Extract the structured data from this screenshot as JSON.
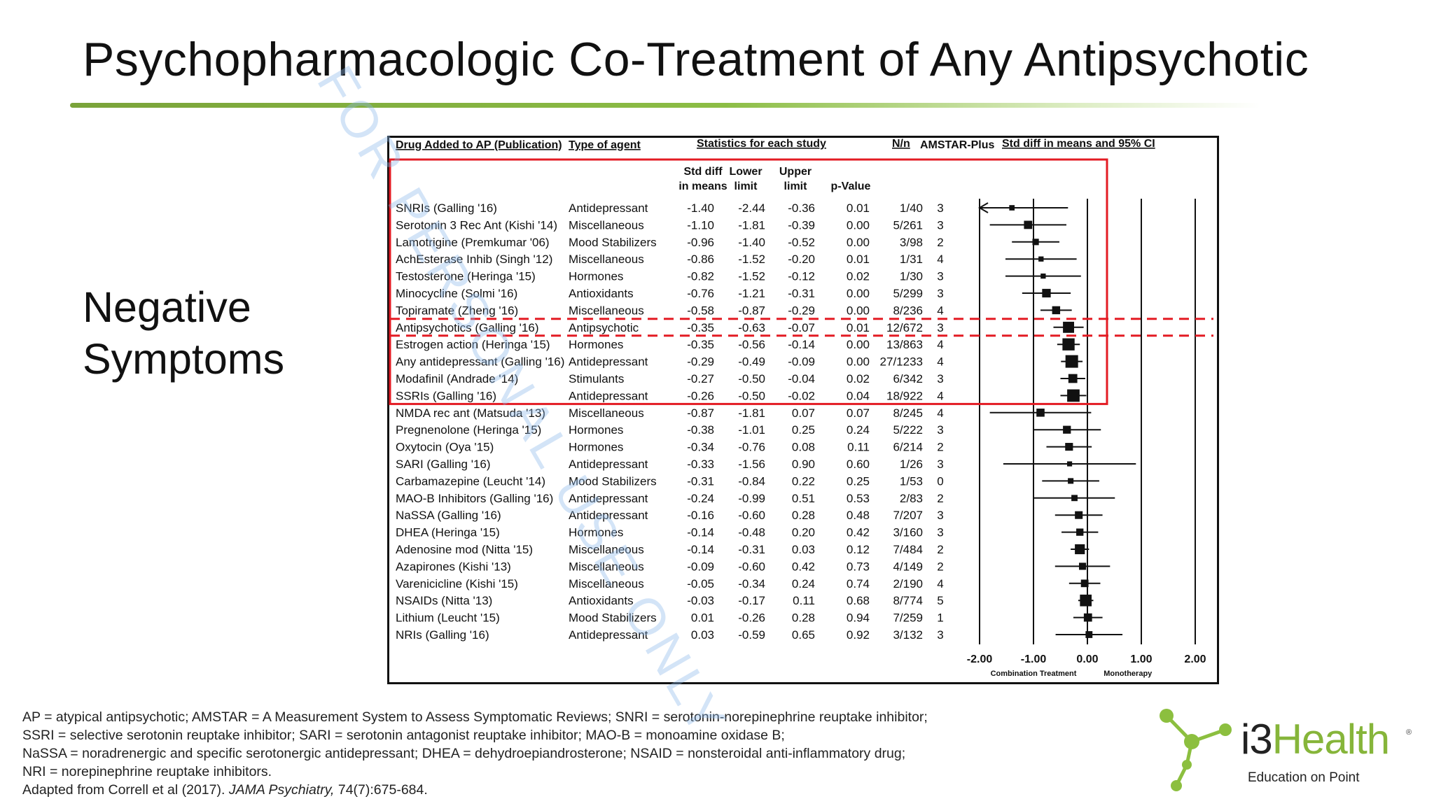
{
  "slide": {
    "title": "Psychopharmacologic Co-Treatment of Any Antipsychotic",
    "subtitle_line1": "Negative",
    "subtitle_line2": "Symptoms",
    "watermark": "FOR PERSONAL USE ONLY",
    "accent_color": "#86b53a",
    "highlight_color": "#e31b23"
  },
  "chart_data": {
    "type": "forest",
    "headers": {
      "drug": "Drug Added to AP (Publication)",
      "type": "Type of agent",
      "statistics": "Statistics for each study",
      "n": "N/n",
      "amstar": "AMSTAR-Plus",
      "ci": "Std diff in means and 95% CI"
    },
    "subheaders": {
      "std1": "Std diff",
      "std2": "in means",
      "lower1": "Lower",
      "lower2": "limit",
      "upper1": "Upper",
      "upper2": "limit",
      "p": "p-Value"
    },
    "axis": {
      "min": -2,
      "max": 2,
      "ticks": [
        "-2.00",
        "-1.00",
        "0.00",
        "1.00",
        "2.00"
      ],
      "left_label": "Combination Treatment",
      "right_label": "Monotherapy"
    },
    "rows": [
      {
        "drug": "SNRIs (Galling '16)",
        "type": "Antidepressant",
        "smd": "-1.40",
        "lower": "-2.44",
        "upper": "-0.36",
        "p": "0.01",
        "n": "1/40",
        "amstar": "3",
        "arrow_left": true
      },
      {
        "drug": "Serotonin 3 Rec Ant (Kishi '14)",
        "type": "Miscellaneous",
        "smd": "-1.10",
        "lower": "-1.81",
        "upper": "-0.39",
        "p": "0.00",
        "n": "5/261",
        "amstar": "3"
      },
      {
        "drug": "Lamotrigine (Premkumar '06)",
        "type": "Mood Stabilizers",
        "smd": "-0.96",
        "lower": "-1.40",
        "upper": "-0.52",
        "p": "0.00",
        "n": "3/98",
        "amstar": "2"
      },
      {
        "drug": "AchEsterase Inhib (Singh '12)",
        "type": "Miscellaneous",
        "smd": "-0.86",
        "lower": "-1.52",
        "upper": "-0.20",
        "p": "0.01",
        "n": "1/31",
        "amstar": "4"
      },
      {
        "drug": "Testosterone (Heringa '15)",
        "type": "Hormones",
        "smd": "-0.82",
        "lower": "-1.52",
        "upper": "-0.12",
        "p": "0.02",
        "n": "1/30",
        "amstar": "3"
      },
      {
        "drug": "Minocycline (Solmi '16)",
        "type": "Antioxidants",
        "smd": "-0.76",
        "lower": "-1.21",
        "upper": "-0.31",
        "p": "0.00",
        "n": "5/299",
        "amstar": "3"
      },
      {
        "drug": "Topiramate (Zheng '16)",
        "type": "Miscellaneous",
        "smd": "-0.58",
        "lower": "-0.87",
        "upper": "-0.29",
        "p": "0.00",
        "n": "8/236",
        "amstar": "4"
      },
      {
        "drug": "Antipsychotics (Galling '16)",
        "type": "Antipsychotic",
        "smd": "-0.35",
        "lower": "-0.63",
        "upper": "-0.07",
        "p": "0.01",
        "n": "12/672",
        "amstar": "3"
      },
      {
        "drug": "Estrogen action (Heringa '15)",
        "type": "Hormones",
        "smd": "-0.35",
        "lower": "-0.56",
        "upper": "-0.14",
        "p": "0.00",
        "n": "13/863",
        "amstar": "4"
      },
      {
        "drug": "Any antidepressant (Galling '16)",
        "type": "Antidepressant",
        "smd": "-0.29",
        "lower": "-0.49",
        "upper": "-0.09",
        "p": "0.00",
        "n": "27/1233",
        "amstar": "4"
      },
      {
        "drug": "Modafinil (Andrade '14)",
        "type": "Stimulants",
        "smd": "-0.27",
        "lower": "-0.50",
        "upper": "-0.04",
        "p": "0.02",
        "n": "6/342",
        "amstar": "3"
      },
      {
        "drug": "SSRIs (Galling '16)",
        "type": "Antidepressant",
        "smd": "-0.26",
        "lower": "-0.50",
        "upper": "-0.02",
        "p": "0.04",
        "n": "18/922",
        "amstar": "4"
      },
      {
        "drug": "NMDA rec ant (Matsuda '13)",
        "type": "Miscellaneous",
        "smd": "-0.87",
        "lower": "-1.81",
        "upper": "0.07",
        "p": "0.07",
        "n": "8/245",
        "amstar": "4"
      },
      {
        "drug": "Pregnenolone (Heringa '15)",
        "type": "Hormones",
        "smd": "-0.38",
        "lower": "-1.01",
        "upper": "0.25",
        "p": "0.24",
        "n": "5/222",
        "amstar": "3"
      },
      {
        "drug": "Oxytocin (Oya '15)",
        "type": "Hormones",
        "smd": "-0.34",
        "lower": "-0.76",
        "upper": "0.08",
        "p": "0.11",
        "n": "6/214",
        "amstar": "2"
      },
      {
        "drug": "SARI (Galling '16)",
        "type": "Antidepressant",
        "smd": "-0.33",
        "lower": "-1.56",
        "upper": "0.90",
        "p": "0.60",
        "n": "1/26",
        "amstar": "3"
      },
      {
        "drug": "Carbamazepine (Leucht '14)",
        "type": "Mood Stabilizers",
        "smd": "-0.31",
        "lower": "-0.84",
        "upper": "0.22",
        "p": "0.25",
        "n": "1/53",
        "amstar": "0"
      },
      {
        "drug": "MAO-B Inhibitors (Galling '16)",
        "type": "Antidepressant",
        "smd": "-0.24",
        "lower": "-0.99",
        "upper": "0.51",
        "p": "0.53",
        "n": "2/83",
        "amstar": "2"
      },
      {
        "drug": "NaSSA (Galling '16)",
        "type": "Antidepressant",
        "smd": "-0.16",
        "lower": "-0.60",
        "upper": "0.28",
        "p": "0.48",
        "n": "7/207",
        "amstar": "3"
      },
      {
        "drug": "DHEA (Heringa '15)",
        "type": "Hormones",
        "smd": "-0.14",
        "lower": "-0.48",
        "upper": "0.20",
        "p": "0.42",
        "n": "3/160",
        "amstar": "3"
      },
      {
        "drug": "Adenosine mod (Nitta '15)",
        "type": "Miscellaneous",
        "smd": "-0.14",
        "lower": "-0.31",
        "upper": "0.03",
        "p": "0.12",
        "n": "7/484",
        "amstar": "2"
      },
      {
        "drug": "Azapirones (Kishi '13)",
        "type": "Miscellaneous",
        "smd": "-0.09",
        "lower": "-0.60",
        "upper": "0.42",
        "p": "0.73",
        "n": "4/149",
        "amstar": "2"
      },
      {
        "drug": "Varenicicline (Kishi '15)",
        "type": "Miscellaneous",
        "smd": "-0.05",
        "lower": "-0.34",
        "upper": "0.24",
        "p": "0.74",
        "n": "2/190",
        "amstar": "4"
      },
      {
        "drug": "NSAIDs (Nitta '13)",
        "type": "Antioxidants",
        "smd": "-0.03",
        "lower": "-0.17",
        "upper": "0.11",
        "p": "0.68",
        "n": "8/774",
        "amstar": "5"
      },
      {
        "drug": "Lithium (Leucht '15)",
        "type": "Mood Stabilizers",
        "smd": "0.01",
        "lower": "-0.26",
        "upper": "0.28",
        "p": "0.94",
        "n": "7/259",
        "amstar": "1"
      },
      {
        "drug": "NRIs (Galling '16)",
        "type": "Antidepressant",
        "smd": "0.03",
        "lower": "-0.59",
        "upper": "0.65",
        "p": "0.92",
        "n": "3/132",
        "amstar": "3"
      }
    ],
    "significant_rows": [
      0,
      11
    ],
    "dashed_highlight_row": 7
  },
  "footnotes": [
    "AP = atypical antipsychotic; AMSTAR = A Measurement System to Assess Symptomatic Reviews; SNRI = serotonin-norepinephrine reuptake inhibitor;",
    "SSRI = selective serotonin reuptake inhibitor; SARI = serotonin antagonist reuptake inhibitor; MAO-B = monoamine oxidase B;",
    "NaSSA = noradrenergic and specific serotonergic antidepressant; DHEA = dehydroepiandrosterone; NSAID = nonsteroidal anti-inflammatory drug;",
    "NRI = norepinephrine reuptake inhibitors."
  ],
  "citation": {
    "prefix": "Adapted from Correll et al (2017). ",
    "journal": "JAMA Psychiatry,",
    "suffix": " 74(7):675-684."
  },
  "logo": {
    "word_main": "i3",
    "word_accent": "Health",
    "registered": "®",
    "tagline": "Education on Point"
  }
}
